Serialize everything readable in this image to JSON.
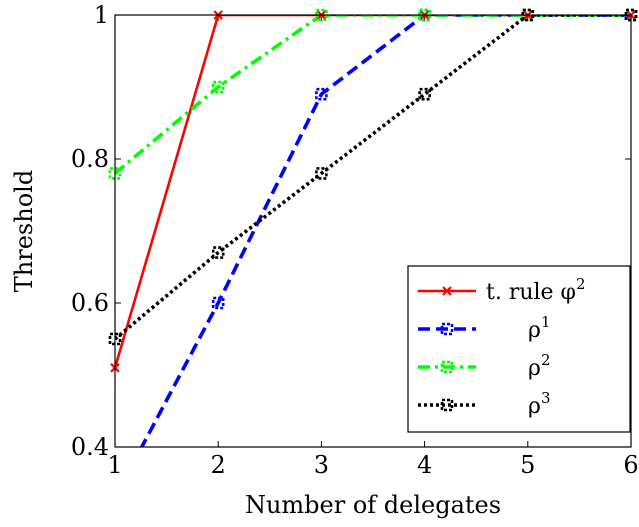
{
  "chart_data": {
    "type": "line",
    "xlabel": "Number of delegates",
    "ylabel": "Threshold",
    "xlim": [
      1,
      6
    ],
    "ylim": [
      0.4,
      1.0
    ],
    "xticks": [
      1,
      2,
      3,
      4,
      5,
      6
    ],
    "yticks": [
      0.4,
      0.6,
      0.8,
      1.0
    ],
    "xtick_labels": [
      "1",
      "2",
      "3",
      "4",
      "5",
      "6"
    ],
    "ytick_labels": [
      "0.4",
      "0.6",
      "0.8",
      "1"
    ],
    "grid": false,
    "legend_position": "bottom-right",
    "series": [
      {
        "name": "t. rule φ",
        "name_sup": "2",
        "color": "#ff0000",
        "dash": "solid",
        "marker": "x",
        "x": [
          1,
          2,
          3,
          4,
          5,
          6
        ],
        "y": [
          0.51,
          1.0,
          1.0,
          1.0,
          1.0,
          1.0
        ]
      },
      {
        "name": "ρ",
        "name_sup": "1",
        "color": "#0000ff",
        "dash": "dashed",
        "marker": "square-dashed",
        "x": [
          1,
          2,
          3,
          4,
          5,
          6
        ],
        "y": [
          0.33,
          0.6,
          0.89,
          1.0,
          1.0,
          1.0
        ]
      },
      {
        "name": "ρ",
        "name_sup": "2",
        "color": "#00ff00",
        "dash": "dashdot",
        "marker": "square-dashed",
        "x": [
          1,
          2,
          3,
          4,
          5,
          6
        ],
        "y": [
          0.78,
          0.9,
          1.0,
          1.0,
          1.0,
          1.0
        ]
      },
      {
        "name": "ρ",
        "name_sup": "3",
        "color": "#000000",
        "dash": "dotted",
        "marker": "square-dashed",
        "x": [
          1,
          2,
          3,
          4,
          5,
          6
        ],
        "y": [
          0.55,
          0.67,
          0.78,
          0.89,
          1.0,
          1.0
        ]
      }
    ]
  }
}
